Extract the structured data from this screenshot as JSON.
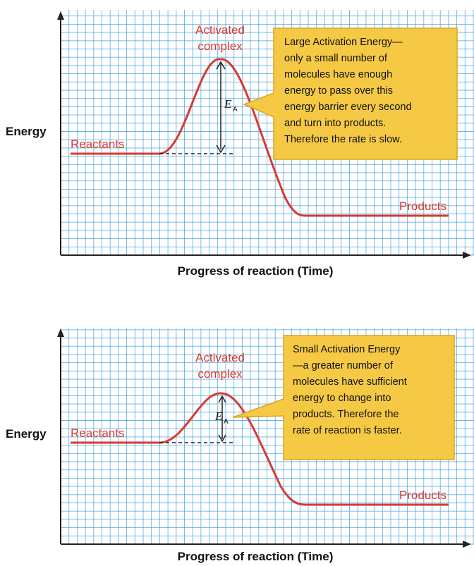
{
  "diagrams": [
    {
      "y_axis_label": "Energy",
      "x_axis_label": "Progress of reaction (Time)",
      "peak_label_lines": [
        "Activated",
        "complex"
      ],
      "reactants_label": "Reactants",
      "products_label": "Products",
      "ea_label": "E",
      "ea_subscript": "A",
      "callout_lines": [
        "Large Activation Energy—",
        "only a small number of",
        "molecules have enough",
        "energy to pass over this",
        "energy barrier every second",
        "and turn into products.",
        "Therefore the rate is slow."
      ]
    },
    {
      "y_axis_label": "Energy",
      "x_axis_label": "Progress of reaction (Time)",
      "peak_label_lines": [
        "Activated",
        "complex"
      ],
      "reactants_label": "Reactants",
      "products_label": "Products",
      "ea_label": "E",
      "ea_subscript": "A",
      "callout_lines": [
        "Small Activation Energy",
        "—a greater number of",
        "molecules have sufficient",
        "energy to change into",
        "products. Therefore the",
        "rate of reaction is faster."
      ]
    }
  ],
  "colors": {
    "grid": "#3a9be0",
    "curve": "#d93a2f",
    "callout_fill": "#f6c945",
    "callout_stroke": "#d9a520",
    "axis": "#222222"
  }
}
